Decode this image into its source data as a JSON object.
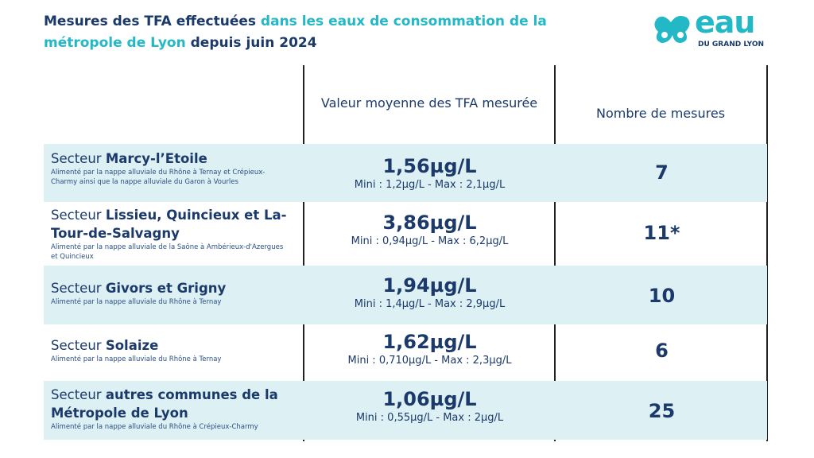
{
  "title": {
    "part1": "Mesures des TFA effectuées ",
    "part2": "dans les eaux de consommation de la métropole de Lyon",
    "part3": " depuis juin 2024"
  },
  "logo": {
    "word": "eau",
    "sub": "DU GRAND LYON"
  },
  "headers": {
    "value": "Valeur moyenne des TFA mesurée",
    "count": "Nombre de mesures"
  },
  "colors": {
    "navy": "#1b3a6b",
    "cyan": "#22b8c6",
    "row_shade": "#ddf0f4"
  },
  "rows": [
    {
      "prefix": "Secteur ",
      "name": "Marcy-l’Etoile",
      "desc": "Alimenté par la nappe alluviale du Rhône à Ternay et Crépieux-Charmy ainsi que la nappe alluviale du Garon à Vourles",
      "value": "1,56µg/L",
      "minmax": "Mini : 1,2µg/L - Max : 2,1µg/L",
      "count": "7"
    },
    {
      "prefix": "Secteur ",
      "name": "Lissieu, Quincieux et La-Tour-de-Salvagny",
      "desc": "Alimenté par la nappe alluviale de la Saône à Ambérieux-d'Azergues et Quincieux",
      "value": "3,86µg/L",
      "minmax": "Mini : 0,94µg/L - Max : 6,2µg/L",
      "count": "11*"
    },
    {
      "prefix": "Secteur ",
      "name": "Givors et Grigny",
      "desc": "Alimenté par la nappe alluviale du Rhône à Ternay",
      "value": "1,94µg/L",
      "minmax": "Mini : 1,4µg/L - Max : 2,9µg/L",
      "count": "10"
    },
    {
      "prefix": "Secteur ",
      "name": "Solaize",
      "desc": "Alimenté par la nappe alluviale du Rhône à Ternay",
      "value": "1,62µg/L",
      "minmax": "Mini : 0,710µg/L - Max : 2,3µg/L",
      "count": "6"
    },
    {
      "prefix": "Secteur ",
      "name": "autres communes de la Métropole de Lyon",
      "desc": "Alimenté par la nappe alluviale du Rhône à Crépieux-Charmy",
      "value": "1,06µg/L",
      "minmax": "Mini : 0,55µg/L - Max : 2µg/L",
      "count": "25"
    }
  ]
}
